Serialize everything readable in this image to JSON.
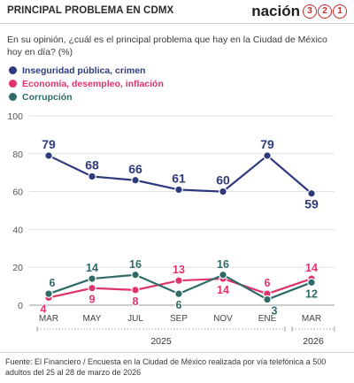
{
  "header": {
    "title": "PRINCIPAL PROBLEMA EN CDMX",
    "brand_word": "nación",
    "brand_digits": [
      "3",
      "2",
      "1"
    ]
  },
  "question": "En su opinión, ¿cuál es el principal problema que hay en la Ciudad de México hoy en día? (%)",
  "colors": {
    "navy": "#2e3a7d",
    "pink": "#e0336b",
    "teal": "#2e6b67",
    "brand_red": "#c92a2a",
    "grid": "#d9d9d9"
  },
  "chart_data": {
    "type": "line",
    "categories": [
      "MAR",
      "MAY",
      "JUL",
      "SEP",
      "NOV",
      "ENE",
      "MAR"
    ],
    "year_groups": [
      {
        "label": "2025",
        "span": [
          "MAR",
          "NOV"
        ]
      },
      {
        "label": "2026",
        "span": [
          "ENE",
          "MAR"
        ]
      }
    ],
    "ylim": [
      0,
      100
    ],
    "yticks": [
      0,
      20,
      40,
      60,
      80,
      100
    ],
    "grid": true,
    "legend_position": "top-left",
    "series": [
      {
        "name": "Inseguridad pública, crimen",
        "color": "#2e3a7d",
        "values": [
          79,
          68,
          66,
          61,
          60,
          79,
          59
        ]
      },
      {
        "name": "Economía, desempleo, inflación",
        "color": "#e0336b",
        "values": [
          4,
          9,
          8,
          13,
          14,
          6,
          14
        ]
      },
      {
        "name": "Corrupción",
        "color": "#2e6b67",
        "values": [
          6,
          14,
          16,
          6,
          16,
          3,
          12
        ]
      }
    ]
  },
  "footer": {
    "source": "Fuente: El Financiero /  Encuesta en la Ciudad de México realizada por vía telefónica a 500 adultos del 25 al 28 de marzo de 2026"
  }
}
